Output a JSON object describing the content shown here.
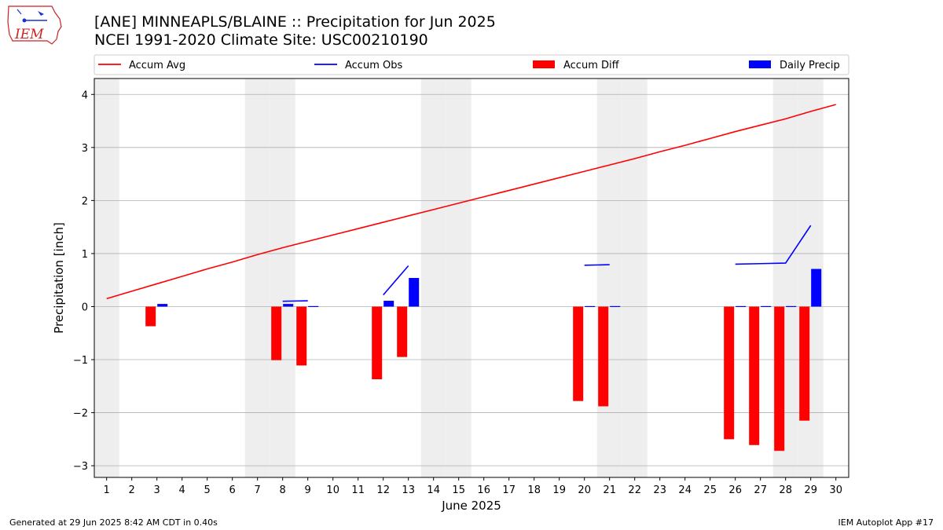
{
  "header": {
    "logo_text": "IEM",
    "title_line1": "[ANE] MINNEAPLS/BLAINE :: Precipitation for Jun 2025",
    "title_line2": "NCEI 1991-2020 Climate Site: USC00210190"
  },
  "footer": {
    "generated": "Generated at 29 Jun 2025 8:42 AM CDT in 0.40s",
    "app": "IEM Autoplot App #17"
  },
  "colors": {
    "accum_avg": "#ff0000",
    "accum_obs": "#0000ff",
    "accum_diff": "#ff0000",
    "daily_precip": "#0000ff",
    "weekend_shade": "#eeeeee",
    "grid": "#b0b0b0"
  },
  "chart_data": {
    "type": "bar",
    "xlabel": "June 2025",
    "ylabel": "Precipitation [inch]",
    "ylim": [
      -3.22,
      4.3
    ],
    "yticks": [
      -3,
      -2,
      -1,
      0,
      1,
      2,
      3,
      4
    ],
    "grid": "horizontal",
    "legend_placement": "top",
    "days": [
      1,
      2,
      3,
      4,
      5,
      6,
      7,
      8,
      9,
      10,
      11,
      12,
      13,
      14,
      15,
      16,
      17,
      18,
      19,
      20,
      21,
      22,
      23,
      24,
      25,
      26,
      27,
      28,
      29,
      30
    ],
    "weekend_days": [
      1,
      7,
      8,
      14,
      15,
      21,
      22,
      28,
      29
    ],
    "legend": [
      {
        "label": "Accum Avg",
        "kind": "line",
        "color": "#ff0000"
      },
      {
        "label": "Accum Obs",
        "kind": "line",
        "color": "#0000ff"
      },
      {
        "label": "Accum Diff",
        "kind": "bar",
        "color": "#ff0000"
      },
      {
        "label": "Daily Precip",
        "kind": "bar",
        "color": "#0000ff"
      }
    ],
    "series": [
      {
        "name": "Accum Avg",
        "type": "line",
        "values": [
          0.15,
          0.29,
          0.43,
          0.57,
          0.71,
          0.84,
          0.98,
          1.11,
          1.23,
          1.35,
          1.47,
          1.59,
          1.71,
          1.83,
          1.95,
          2.07,
          2.19,
          2.31,
          2.43,
          2.55,
          2.67,
          2.79,
          2.92,
          3.04,
          3.17,
          3.3,
          3.42,
          3.54,
          3.68,
          3.81
        ]
      },
      {
        "name": "Accum Obs",
        "type": "line",
        "segments": [
          [
            {
              "day": 8,
              "value": 0.1
            },
            {
              "day": 9,
              "value": 0.11
            }
          ],
          [
            {
              "day": 12,
              "value": 0.22
            },
            {
              "day": 13,
              "value": 0.77
            }
          ],
          [
            {
              "day": 20,
              "value": 0.78
            },
            {
              "day": 21,
              "value": 0.79
            }
          ],
          [
            {
              "day": 26,
              "value": 0.8
            },
            {
              "day": 27,
              "value": 0.81
            },
            {
              "day": 28,
              "value": 0.82
            },
            {
              "day": 29,
              "value": 1.53
            }
          ]
        ]
      },
      {
        "name": "Accum Diff",
        "type": "bar",
        "points": [
          {
            "day": 3,
            "value": -0.37
          },
          {
            "day": 8,
            "value": -1.01
          },
          {
            "day": 9,
            "value": -1.11
          },
          {
            "day": 12,
            "value": -1.37
          },
          {
            "day": 13,
            "value": -0.95
          },
          {
            "day": 20,
            "value": -1.78
          },
          {
            "day": 21,
            "value": -1.88
          },
          {
            "day": 26,
            "value": -2.5
          },
          {
            "day": 27,
            "value": -2.61
          },
          {
            "day": 28,
            "value": -2.72
          },
          {
            "day": 29,
            "value": -2.15
          }
        ]
      },
      {
        "name": "Daily Precip",
        "type": "bar",
        "points": [
          {
            "day": 3,
            "value": 0.05
          },
          {
            "day": 8,
            "value": 0.05
          },
          {
            "day": 9,
            "value": 0.01
          },
          {
            "day": 12,
            "value": 0.11
          },
          {
            "day": 13,
            "value": 0.54
          },
          {
            "day": 20,
            "value": 0.01
          },
          {
            "day": 21,
            "value": 0.01
          },
          {
            "day": 26,
            "value": 0.01
          },
          {
            "day": 27,
            "value": 0.01
          },
          {
            "day": 28,
            "value": 0.01
          },
          {
            "day": 29,
            "value": 0.71
          }
        ]
      }
    ]
  }
}
